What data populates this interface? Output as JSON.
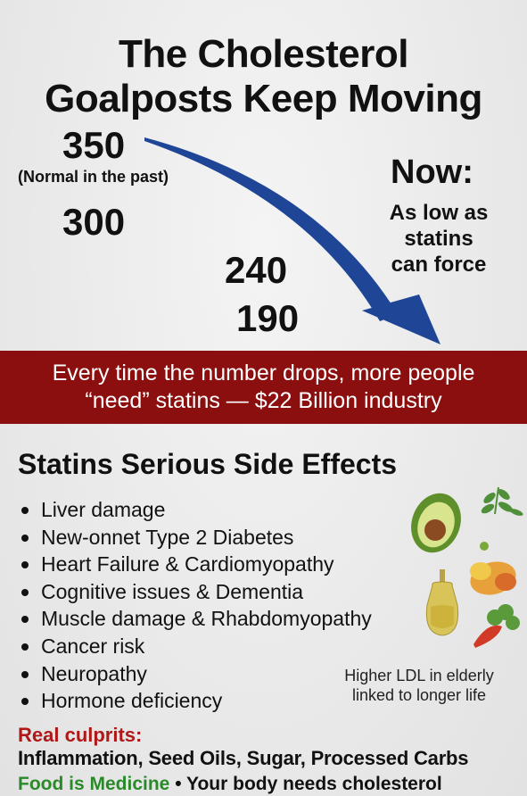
{
  "title": {
    "line1": "The Cholesterol",
    "line2": "Goalposts Keep Moving"
  },
  "thresholds": {
    "values": [
      "350",
      "300",
      "240",
      "190"
    ],
    "past_note": "(Normal in the past)"
  },
  "now": {
    "label": "Now:",
    "note_lines": [
      "As low as",
      "statins",
      "can force"
    ]
  },
  "arrow": {
    "color": "#1e4596"
  },
  "banner": {
    "line1": "Every time the number drops, more people",
    "line2": "“need” statins — $22 Billion industry",
    "background": "#8c0f0f"
  },
  "side_effects": {
    "heading": "Statins Serious Side Effects",
    "items": [
      "Liver damage",
      "New-onnet Type 2 Diabetes",
      "Heart Failure & Cardiomyopathy",
      "Cognitive issues & Dementia",
      "Muscle damage & Rhabdomyopathy",
      "Cancer risk",
      "Neuropathy",
      "Hormone deficiency"
    ]
  },
  "ldl_note": {
    "line1": "Higher LDL in elderly",
    "line2": "linked to longer life"
  },
  "culprits": {
    "label": "Real culprits:",
    "text": "Inflammation, Seed Oils, Sugar, Processed Carbs",
    "label_color": "#b01818"
  },
  "footer": {
    "green_part": "Food is Medicine",
    "separator": "•",
    "rest": "Your body needs cholesterol",
    "green_color": "#2a8a2a"
  },
  "illustrations": [
    "avocado-icon",
    "herb-sprig-icon",
    "olive-oil-bottle-icon",
    "lemon-icon",
    "bell-pepper-icon",
    "leafy-greens-icon",
    "carrot-icon"
  ]
}
